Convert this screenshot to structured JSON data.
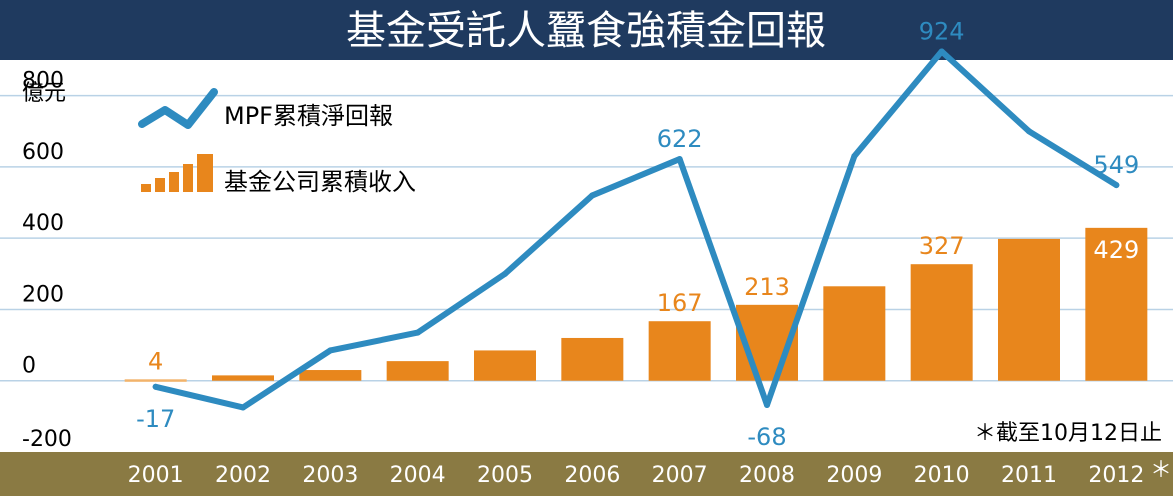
{
  "chart_data": {
    "type": "bar",
    "title": "基金受託人蠶食強積金回報",
    "unit_label": "億元",
    "footnote": "＊截至10月12日止",
    "year_suffix_mark": "＊",
    "ylim": [
      -200,
      900
    ],
    "yticks": [
      800,
      600,
      400,
      200,
      0,
      -200
    ],
    "grid": true,
    "legend_position": "top-left",
    "categories": [
      "2001",
      "2002",
      "2003",
      "2004",
      "2005",
      "2006",
      "2007",
      "2008",
      "2009",
      "2010",
      "2011",
      "2012"
    ],
    "series": [
      {
        "name": "MPF累積淨回報",
        "type": "line",
        "values": [
          -17,
          -75,
          85,
          135,
          300,
          520,
          622,
          -68,
          630,
          924,
          700,
          549
        ],
        "labels": [
          "-17",
          "",
          "",
          "",
          "",
          "",
          "622",
          "-68",
          "",
          "924",
          "",
          "549"
        ]
      },
      {
        "name": "基金公司累積收入",
        "type": "bar",
        "values": [
          4,
          15,
          30,
          55,
          85,
          120,
          167,
          213,
          265,
          327,
          398,
          429
        ],
        "labels": [
          "4",
          "",
          "",
          "",
          "",
          "",
          "167",
          "213",
          "",
          "327",
          "",
          "429"
        ]
      }
    ],
    "colors": {
      "title_bg": "#1f3a5f",
      "title_text": "#ffffff",
      "line": "#2e8bc0",
      "bar": "#e8861c",
      "bar_first": "#f2b36b",
      "axis_band": "#8a7a43",
      "axis_text": "#ffffff",
      "grid": "#b9d2e6",
      "text": "#000000"
    }
  }
}
